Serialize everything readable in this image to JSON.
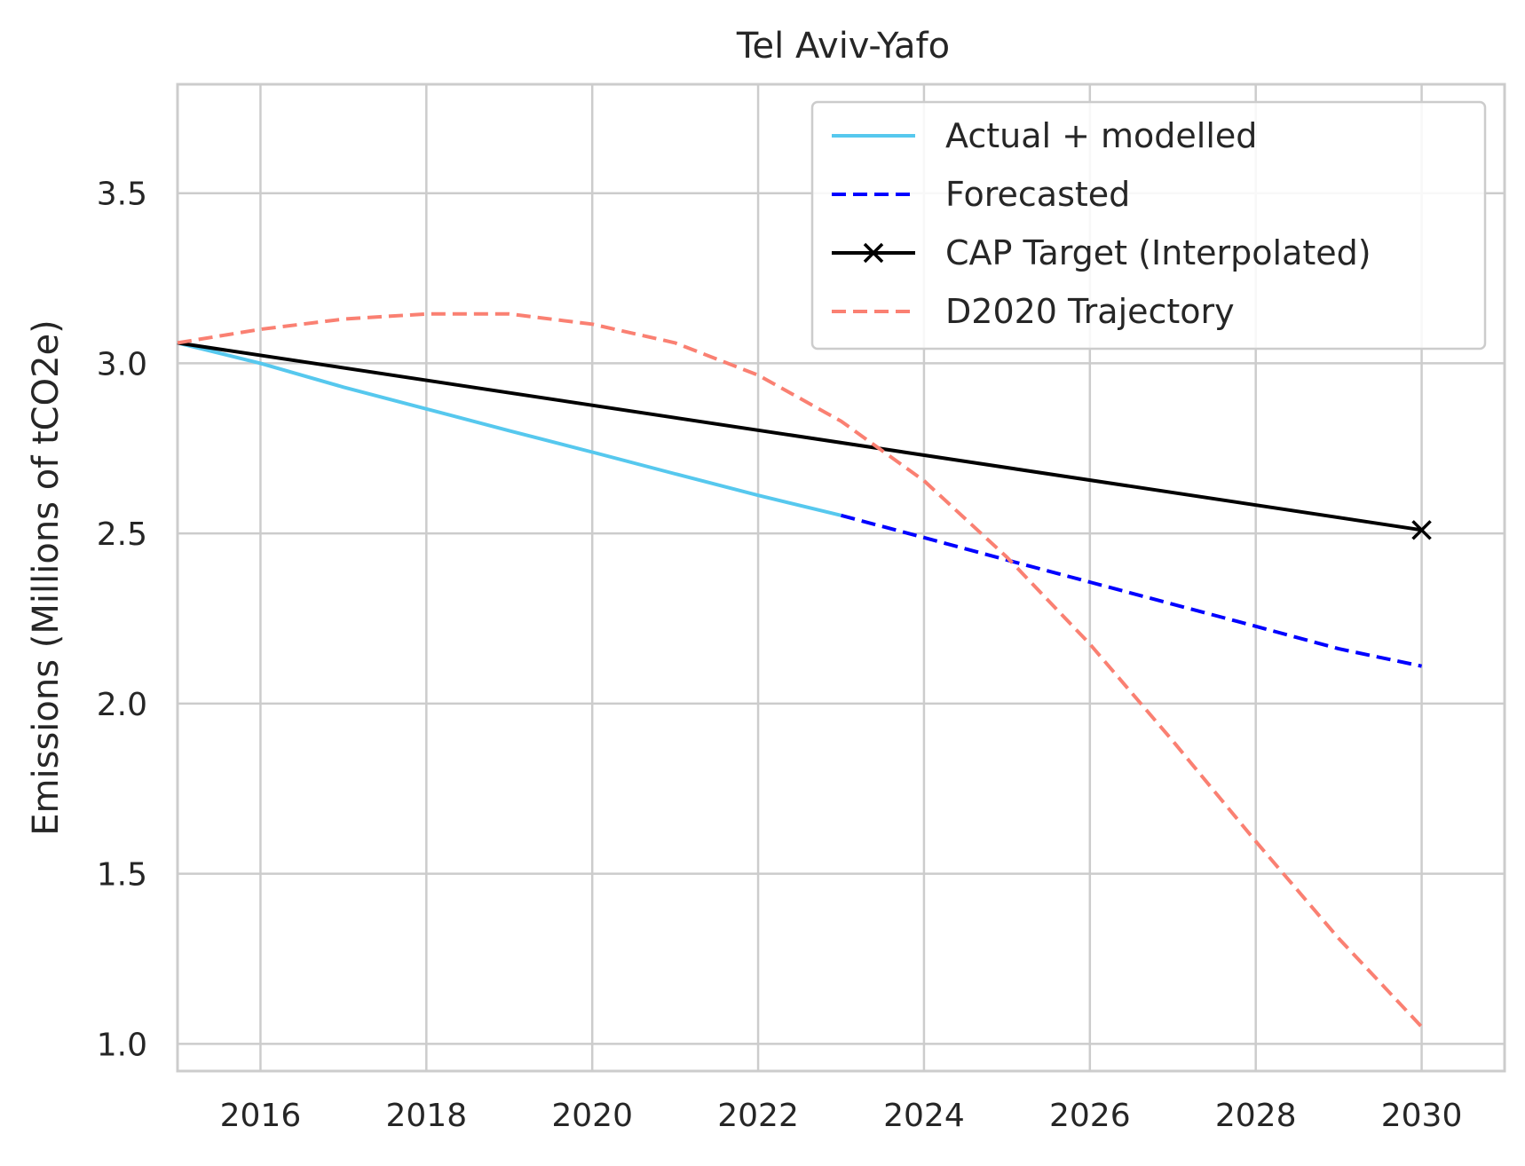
{
  "chart_data": {
    "type": "line",
    "title": "Tel Aviv-Yafo",
    "xlabel": "",
    "ylabel": "Emissions (Millions of tCO2e)",
    "xlim": [
      2015,
      2031
    ],
    "ylim": [
      0.92,
      3.82
    ],
    "xticks": [
      2016,
      2018,
      2020,
      2022,
      2024,
      2026,
      2028,
      2030
    ],
    "yticks": [
      1.0,
      1.5,
      2.0,
      2.5,
      3.0,
      3.5
    ],
    "grid": true,
    "legend_position": "top-right",
    "series": [
      {
        "name": "Actual + modelled",
        "color": "#56C8EE",
        "style": "solid",
        "x": [
          2015,
          2016,
          2017,
          2018,
          2019,
          2020,
          2021,
          2022,
          2023
        ],
        "y": [
          3.06,
          3.0,
          2.93,
          2.866,
          2.802,
          2.739,
          2.675,
          2.612,
          2.553
        ]
      },
      {
        "name": "Forecasted",
        "color": "#0000FF",
        "style": "dashed",
        "x": [
          2023,
          2024,
          2025,
          2026,
          2027,
          2028,
          2029,
          2030
        ],
        "y": [
          2.553,
          2.488,
          2.422,
          2.357,
          2.292,
          2.227,
          2.161,
          2.11
        ]
      },
      {
        "name": "CAP Target (Interpolated)",
        "color": "#000000",
        "style": "solid",
        "marker": "x",
        "marker_at": [
          2030
        ],
        "x": [
          2015,
          2030
        ],
        "y": [
          3.06,
          2.51
        ]
      },
      {
        "name": "D2020 Trajectory",
        "color": "#FA8072",
        "style": "dashed",
        "x": [
          2015,
          2016,
          2017,
          2018,
          2019,
          2020,
          2021,
          2022,
          2023,
          2024,
          2025,
          2026,
          2027,
          2028,
          2029,
          2030
        ],
        "y": [
          3.06,
          3.1,
          3.13,
          3.145,
          3.145,
          3.115,
          3.06,
          2.965,
          2.83,
          2.655,
          2.43,
          2.175,
          1.89,
          1.595,
          1.31,
          1.05
        ]
      }
    ]
  }
}
